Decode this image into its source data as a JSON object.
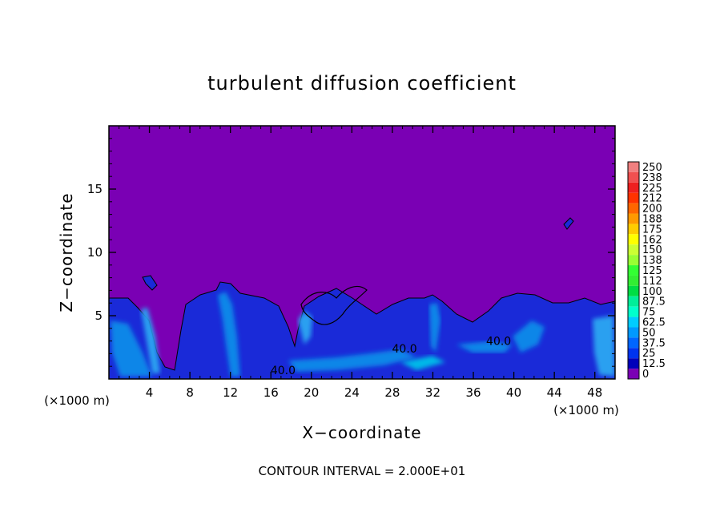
{
  "chart_data": {
    "type": "heatmap",
    "title": "turbulent diffusion coefficient",
    "xlabel": "X−coordinate",
    "ylabel": "Z−coordinate",
    "x_unit_left": "(×1000 m)",
    "x_unit_right": "(×1000 m)",
    "footer": "CONTOUR INTERVAL = 2.000E+01",
    "xlim": [
      0,
      50
    ],
    "ylim": [
      0,
      20
    ],
    "x_ticks": [
      4,
      8,
      12,
      16,
      20,
      24,
      28,
      32,
      36,
      40,
      44,
      48
    ],
    "y_ticks": [
      5,
      10,
      15
    ],
    "x_tick_labels": [
      "4",
      "8",
      "12",
      "16",
      "20",
      "24",
      "28",
      "32",
      "36",
      "40",
      "44",
      "48"
    ],
    "y_tick_labels": [
      "5",
      "10",
      "15"
    ],
    "contour_labels": [
      {
        "text": "40.0",
        "x": 17.2,
        "z": 0.7
      },
      {
        "text": "40.0",
        "x": 29.2,
        "z": 2.4
      },
      {
        "text": "40.0",
        "x": 38.5,
        "z": 3.0
      }
    ],
    "colorbar": {
      "labels": [
        "250",
        "238",
        "225",
        "212",
        "200",
        "188",
        "175",
        "162",
        "150",
        "138",
        "125",
        "112",
        "100",
        "87.5",
        "75",
        "62.5",
        "50",
        "37.5",
        "25",
        "12.5",
        "0"
      ],
      "colors": [
        "#f08080",
        "#f05050",
        "#ee2020",
        "#ff3300",
        "#ff6600",
        "#ff9900",
        "#ffcc00",
        "#ffff00",
        "#ccff33",
        "#99ff33",
        "#33ff33",
        "#33ee33",
        "#00dd44",
        "#00ee99",
        "#00ffcc",
        "#00ccff",
        "#0099ff",
        "#0066ff",
        "#0033ee",
        "#0000bb",
        "#7a00b4"
      ]
    },
    "background_color": "#7a00b4"
  }
}
